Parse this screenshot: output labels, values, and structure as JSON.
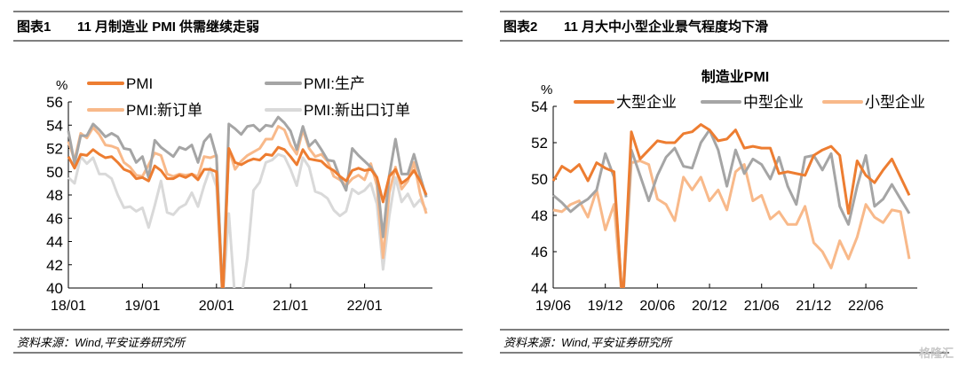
{
  "charts": [
    {
      "label": "图表1",
      "title": "11 月制造业 PMI 供需继续走弱",
      "source": "资料来源：Wind,平安证券研究所"
    },
    {
      "label": "图表2",
      "title": "11 月大中小型企业景气程度均下滑",
      "source": "资料来源：Wind,平安证券研究所"
    }
  ],
  "watermark": "格隆汇",
  "chart_data": [
    {
      "type": "line",
      "title": "",
      "ylabel": "%",
      "ylim": [
        40,
        56
      ],
      "yticks": [
        40,
        42,
        44,
        46,
        48,
        50,
        52,
        54,
        56
      ],
      "xstart": "18/01",
      "xticks": [
        "18/01",
        "19/01",
        "20/01",
        "21/01",
        "22/01"
      ],
      "grid": false,
      "legend": "top",
      "series": [
        {
          "name": "PMI",
          "color": "#ed7d31",
          "values": [
            51.3,
            50.3,
            51.5,
            51.4,
            51.9,
            51.5,
            51.2,
            51.3,
            50.8,
            50.2,
            50.0,
            49.4,
            49.5,
            49.2,
            50.5,
            50.1,
            49.4,
            49.4,
            49.7,
            49.5,
            49.8,
            49.3,
            50.2,
            50.2,
            50.0,
            35.7,
            52.0,
            50.8,
            50.6,
            50.9,
            51.1,
            51.0,
            51.5,
            51.4,
            52.1,
            51.9,
            51.3,
            50.6,
            51.9,
            51.1,
            51.0,
            50.9,
            50.4,
            50.1,
            49.6,
            49.2,
            50.1,
            50.3,
            50.1,
            50.2,
            49.5,
            47.4,
            49.6,
            50.2,
            49.0,
            49.4,
            50.1,
            49.2,
            48.0
          ]
        },
        {
          "name": "PMI:生产",
          "color": "#a5a5a5",
          "values": [
            53.5,
            50.7,
            53.1,
            53.1,
            54.1,
            53.6,
            53.0,
            53.3,
            53.0,
            52.0,
            51.9,
            50.8,
            51.3,
            49.5,
            52.7,
            52.1,
            51.7,
            51.3,
            52.1,
            51.9,
            52.3,
            50.8,
            52.6,
            53.2,
            51.3,
            27.8,
            54.1,
            53.7,
            53.2,
            53.9,
            54.0,
            53.5,
            54.0,
            53.9,
            54.7,
            54.2,
            53.5,
            51.9,
            53.9,
            52.2,
            52.7,
            51.9,
            51.0,
            50.9,
            49.5,
            48.4,
            52.0,
            51.4,
            50.9,
            50.4,
            49.5,
            44.4,
            49.7,
            52.8,
            49.8,
            49.8,
            51.5,
            49.6,
            47.8
          ]
        },
        {
          "name": "PMI:新订单",
          "color": "#f8b98a",
          "values": [
            52.6,
            51.0,
            53.3,
            52.9,
            53.8,
            53.2,
            52.3,
            52.2,
            52.0,
            50.8,
            50.4,
            49.7,
            49.6,
            50.6,
            51.6,
            51.4,
            49.8,
            49.6,
            49.8,
            49.7,
            49.8,
            49.6,
            51.3,
            51.2,
            51.4,
            29.3,
            52.0,
            50.2,
            50.9,
            51.4,
            51.7,
            52.0,
            52.8,
            52.8,
            53.9,
            53.6,
            52.3,
            51.5,
            53.6,
            52.0,
            51.3,
            51.5,
            50.9,
            49.6,
            49.3,
            48.8,
            49.4,
            49.7,
            49.3,
            50.7,
            48.8,
            42.6,
            48.2,
            50.4,
            48.5,
            49.2,
            50.8,
            48.1,
            46.4
          ]
        },
        {
          "name": "PMI:新出口订单",
          "color": "#d9d9d9",
          "values": [
            49.5,
            49.0,
            51.3,
            50.7,
            51.2,
            49.8,
            49.8,
            49.4,
            48.0,
            46.9,
            47.0,
            46.6,
            46.9,
            45.2,
            47.1,
            49.2,
            46.5,
            46.3,
            46.9,
            47.2,
            48.2,
            47.0,
            48.8,
            50.3,
            48.7,
            28.7,
            46.4,
            33.5,
            35.3,
            42.6,
            48.4,
            49.1,
            50.8,
            51.0,
            51.5,
            51.3,
            50.2,
            48.8,
            51.2,
            50.4,
            48.3,
            48.1,
            47.7,
            46.7,
            46.2,
            46.6,
            48.5,
            48.1,
            48.4,
            49.0,
            47.2,
            41.6,
            46.2,
            49.5,
            47.4,
            48.1,
            47.0,
            47.6,
            46.7
          ]
        }
      ]
    },
    {
      "type": "line",
      "title": "制造业PMI",
      "ylabel": "%",
      "ylim": [
        44,
        54
      ],
      "yticks": [
        44,
        46,
        48,
        50,
        52,
        54
      ],
      "xstart": "19/06",
      "xticks": [
        "19/06",
        "19/12",
        "20/06",
        "20/12",
        "21/06",
        "21/12",
        "22/06"
      ],
      "grid": false,
      "legend": "top",
      "series": [
        {
          "name": "大型企业",
          "color": "#ed7d31",
          "values": [
            49.9,
            50.7,
            50.4,
            50.8,
            49.9,
            50.9,
            50.6,
            50.4,
            36.5,
            52.6,
            51.1,
            51.6,
            52.1,
            52.0,
            52.0,
            52.5,
            52.6,
            53.0,
            52.7,
            52.1,
            52.2,
            52.7,
            51.7,
            51.8,
            51.7,
            51.7,
            50.3,
            50.4,
            50.3,
            50.2,
            51.3,
            51.6,
            51.8,
            51.3,
            48.1,
            51.0,
            50.2,
            49.8,
            50.5,
            51.1,
            50.1,
            49.1
          ]
        },
        {
          "name": "中型企业",
          "color": "#a5a5a5",
          "values": [
            49.1,
            48.7,
            48.2,
            48.6,
            48.9,
            49.4,
            51.4,
            50.1,
            35.5,
            51.6,
            50.2,
            48.8,
            50.2,
            51.2,
            51.7,
            50.7,
            50.6,
            52.0,
            52.7,
            51.6,
            49.6,
            51.6,
            50.3,
            51.1,
            50.8,
            50.0,
            51.2,
            49.6,
            48.6,
            51.2,
            51.3,
            50.5,
            51.4,
            48.5,
            47.5,
            49.6,
            51.3,
            48.5,
            48.9,
            49.7,
            48.9,
            48.1
          ]
        },
        {
          "name": "小型企业",
          "color": "#f8b98a",
          "values": [
            48.3,
            48.2,
            48.6,
            48.8,
            47.9,
            49.4,
            47.2,
            48.6,
            34.1,
            50.9,
            51.0,
            50.8,
            48.9,
            48.6,
            47.7,
            50.1,
            49.4,
            50.1,
            48.8,
            49.4,
            48.3,
            50.4,
            50.8,
            48.8,
            49.1,
            47.8,
            48.2,
            47.5,
            47.5,
            48.5,
            46.5,
            46.0,
            45.1,
            46.6,
            45.6,
            46.8,
            48.6,
            47.9,
            47.6,
            48.3,
            48.2,
            45.6
          ]
        }
      ]
    }
  ]
}
